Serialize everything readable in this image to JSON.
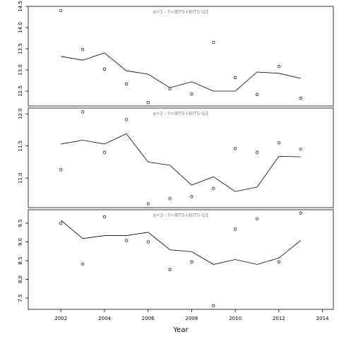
{
  "chart_data": [
    {
      "type": "line",
      "title": "a=1  :  f=IBTS+BITS-Q1",
      "x": [
        2002,
        2003,
        2004,
        2005,
        2006,
        2007,
        2008,
        2009,
        2010,
        2011,
        2012,
        2013
      ],
      "values": [
        13.32,
        13.23,
        13.4,
        12.98,
        12.9,
        12.58,
        12.72,
        12.5,
        12.5,
        12.95,
        12.92,
        12.8
      ],
      "points": [
        14.4,
        13.48,
        13.02,
        12.67,
        12.23,
        12.55,
        12.43,
        13.65,
        12.82,
        12.42,
        13.08,
        12.33
      ],
      "xlim": [
        2000.5,
        2014.5
      ],
      "ylim": [
        12.15,
        14.5
      ],
      "yticks": [
        12.5,
        {
          "value": 13,
          "label": "13.0"
        },
        13.5,
        {
          "value": 14,
          "label": "14.0"
        },
        14.5
      ]
    },
    {
      "type": "line",
      "title": "a=2  :  f=IBTS+BITS-Q1",
      "x": [
        2002,
        2003,
        2004,
        2005,
        2006,
        2007,
        2008,
        2009,
        2010,
        2011,
        2012,
        2013
      ],
      "values": [
        11.53,
        11.59,
        11.53,
        11.69,
        11.25,
        11.2,
        10.89,
        11.02,
        10.79,
        10.86,
        11.34,
        11.33
      ],
      "points": [
        11.13,
        12.03,
        11.4,
        11.91,
        10.6,
        10.68,
        10.71,
        10.84,
        11.46,
        11.4,
        11.55,
        11.45
      ],
      "xlim": [
        2000.5,
        2014.5
      ],
      "ylim": [
        10.54,
        12.09
      ],
      "yticks": [
        {
          "value": 11,
          "label": "11.0"
        },
        11.5,
        {
          "value": 12,
          "label": "12.0"
        }
      ]
    },
    {
      "type": "line",
      "title": "a=3  :  f=IBTS+BITS-Q1",
      "x": [
        2002,
        2003,
        2004,
        2005,
        2006,
        2007,
        2008,
        2009,
        2010,
        2011,
        2012,
        2013
      ],
      "values": [
        9.58,
        9.09,
        9.17,
        9.17,
        9.26,
        8.79,
        8.74,
        8.4,
        8.53,
        8.4,
        8.57,
        9.04
      ],
      "points": [
        9.5,
        8.41,
        9.67,
        9.04,
        9.0,
        8.26,
        8.47,
        7.3,
        9.34,
        9.62,
        8.47,
        9.77
      ],
      "xlim": [
        2000.5,
        2014.5
      ],
      "ylim": [
        7.2,
        9.86
      ],
      "yticks": [
        7.5,
        {
          "value": 8,
          "label": "8.0"
        },
        8.5,
        {
          "value": 9,
          "label": "9.0"
        },
        9.5
      ],
      "xticks": [
        2002,
        2004,
        2006,
        2008,
        2010,
        2012,
        2014
      ],
      "xlabel": "Year"
    }
  ]
}
